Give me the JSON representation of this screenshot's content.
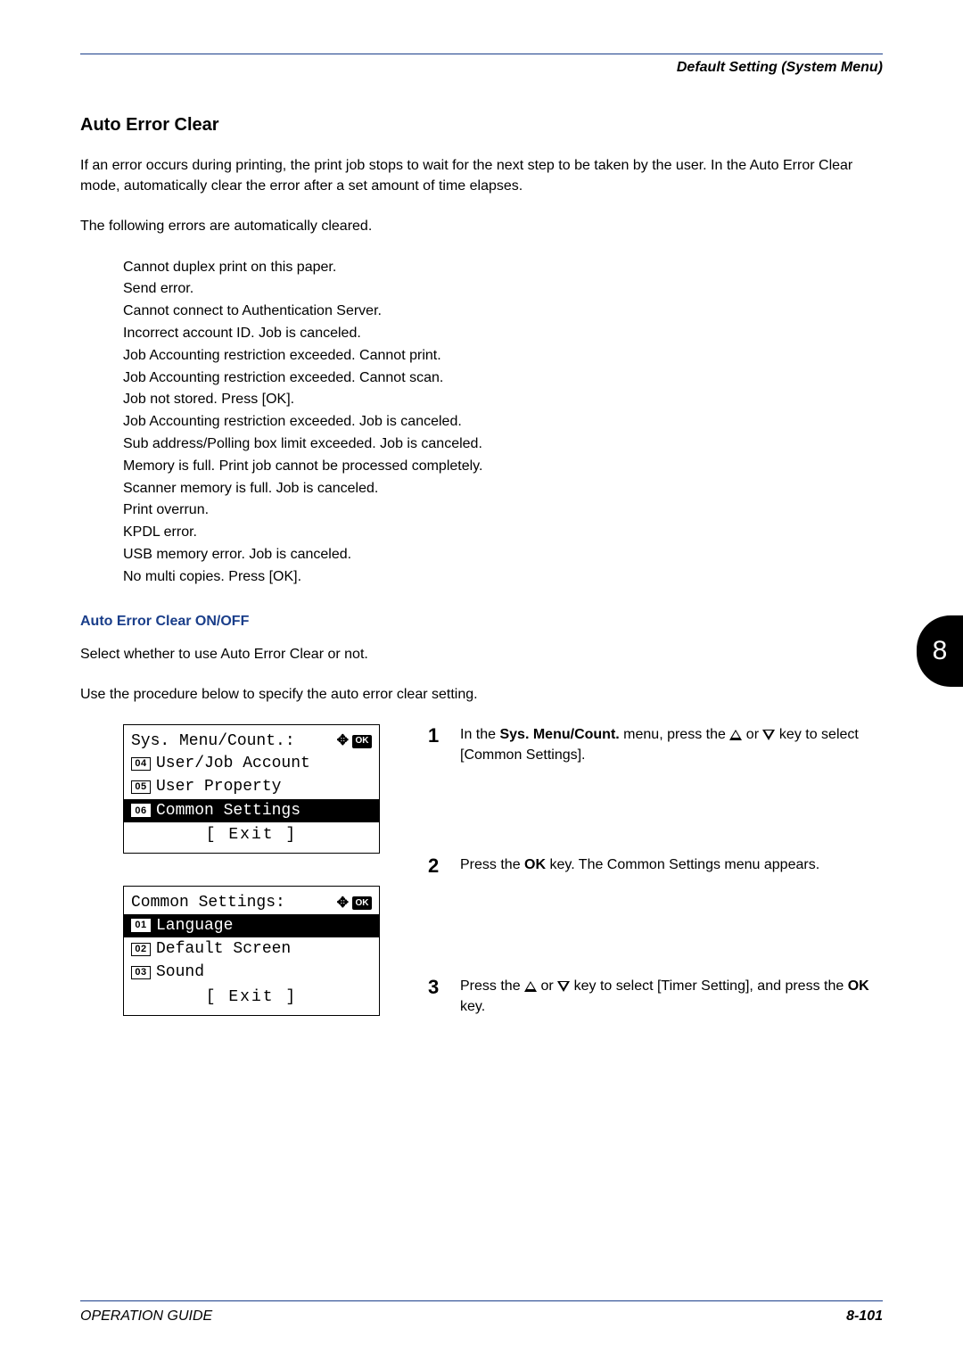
{
  "header": {
    "right": "Default Setting (System Menu)"
  },
  "section_title": "Auto Error Clear",
  "intro_para": "If an error occurs during printing, the print job stops to wait for the next step to be taken by the user. In the Auto Error Clear mode, automatically clear the error after a set amount of time elapses.",
  "following_errors": "The following errors are automatically cleared.",
  "errors": [
    "Cannot duplex print on this paper.",
    "Send error.",
    "Cannot connect to Authentication Server.",
    "Incorrect account ID. Job is canceled.",
    "Job Accounting restriction exceeded. Cannot print.",
    "Job Accounting restriction exceeded. Cannot scan.",
    "Job not stored. Press [OK].",
    "Job Accounting restriction exceeded. Job is canceled.",
    "Sub address/Polling box limit exceeded. Job is canceled.",
    "Memory is full. Print job cannot be processed completely.",
    "Scanner memory is full. Job is canceled.",
    "Print overrun.",
    "KPDL error.",
    "USB memory error. Job is canceled.",
    "No multi copies. Press [OK]."
  ],
  "sub_heading": "Auto Error Clear ON/OFF",
  "select_para": "Select whether to use Auto Error Clear or not.",
  "procedure_para": "Use the procedure below to specify the auto error clear setting.",
  "lcd1": {
    "title": "Sys. Menu/Count.:",
    "ok": "OK",
    "rows": [
      {
        "num": "04",
        "label": "User/Job Account",
        "highlight": false
      },
      {
        "num": "05",
        "label": "User Property",
        "highlight": false
      },
      {
        "num": "06",
        "label": "Common Settings",
        "highlight": true
      }
    ],
    "exit": "[  Exit  ]"
  },
  "lcd2": {
    "title": "Common Settings:",
    "ok": "OK",
    "rows": [
      {
        "num": "01",
        "label": "Language",
        "highlight": true
      },
      {
        "num": "02",
        "label": "Default Screen",
        "highlight": false
      },
      {
        "num": "03",
        "label": "Sound",
        "highlight": false
      }
    ],
    "exit": "[  Exit  ]"
  },
  "steps": {
    "s1": {
      "num": "1",
      "pre": "In the ",
      "b1": "Sys. Menu/Count.",
      "mid": " menu, press the ",
      "post": " key to select [Common Settings]."
    },
    "s2": {
      "num": "2",
      "pre": "Press the ",
      "b1": "OK",
      "mid": " key. The Common Settings menu appears."
    },
    "s3": {
      "num": "3",
      "pre": "Press the ",
      "mid": " key to select [Timer Setting], and press the ",
      "b1": "OK",
      "post": " key."
    }
  },
  "side_tab": "8",
  "footer": {
    "left": "OPERATION GUIDE",
    "right": "8-101"
  },
  "colors": {
    "rule": "#1a3e8a",
    "heading_blue": "#1a3e8a"
  }
}
